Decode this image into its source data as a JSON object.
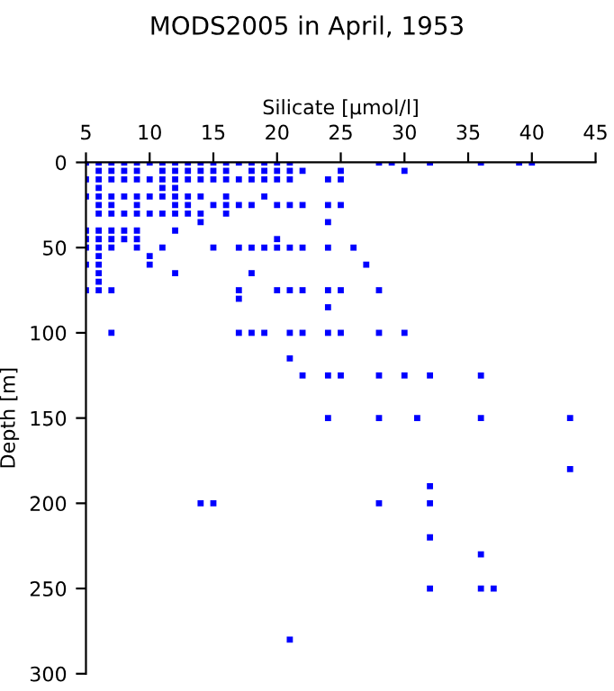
{
  "chart_data": {
    "type": "scatter",
    "title": "MODS2005 in April, 1953",
    "xlabel": "Silicate [µmol/l]",
    "ylabel": "Depth [m]",
    "marker": "square",
    "grid": false,
    "legend": false,
    "series": [
      {
        "color": "#0000ff",
        "x": [
          5,
          5,
          5,
          5,
          5,
          5,
          5,
          5,
          6,
          6,
          6,
          6,
          6,
          6,
          6,
          6,
          6,
          6,
          6,
          6,
          6,
          6,
          6,
          7,
          7,
          7,
          7,
          7,
          7,
          7,
          7,
          7,
          7,
          7,
          8,
          8,
          8,
          8,
          8,
          8,
          8,
          9,
          9,
          9,
          9,
          9,
          9,
          9,
          9,
          9,
          10,
          10,
          10,
          10,
          10,
          10,
          11,
          11,
          11,
          11,
          11,
          11,
          11,
          12,
          12,
          12,
          12,
          12,
          12,
          12,
          12,
          12,
          13,
          13,
          13,
          13,
          13,
          13,
          14,
          14,
          14,
          14,
          14,
          14,
          15,
          15,
          15,
          15,
          15,
          16,
          16,
          16,
          16,
          16,
          16,
          17,
          17,
          17,
          17,
          17,
          17,
          17,
          18,
          18,
          18,
          18,
          18,
          18,
          18,
          19,
          19,
          19,
          19,
          19,
          19,
          20,
          20,
          20,
          20,
          20,
          20,
          20,
          21,
          21,
          21,
          21,
          21,
          21,
          21,
          21,
          22,
          22,
          22,
          22,
          22,
          22,
          24,
          24,
          24,
          24,
          24,
          24,
          24,
          24,
          24,
          25,
          25,
          25,
          25,
          25,
          25,
          26,
          27,
          28,
          28,
          28,
          28,
          28,
          28,
          29,
          30,
          30,
          30,
          31,
          32,
          32,
          32,
          32,
          32,
          32,
          36,
          36,
          36,
          36,
          36,
          37,
          39,
          40,
          43,
          43,
          14,
          15,
          21
        ],
        "values": [
          0,
          10,
          20,
          40,
          45,
          50,
          60,
          75,
          0,
          5,
          10,
          15,
          20,
          25,
          30,
          40,
          45,
          50,
          55,
          60,
          65,
          70,
          75,
          0,
          5,
          10,
          20,
          25,
          30,
          40,
          45,
          50,
          75,
          100,
          0,
          5,
          10,
          20,
          30,
          40,
          45,
          0,
          5,
          10,
          20,
          25,
          30,
          40,
          45,
          50,
          0,
          10,
          20,
          30,
          55,
          60,
          0,
          5,
          10,
          15,
          20,
          30,
          50,
          0,
          5,
          10,
          15,
          20,
          25,
          30,
          40,
          65,
          0,
          5,
          10,
          20,
          25,
          30,
          0,
          5,
          10,
          20,
          30,
          35,
          0,
          5,
          10,
          25,
          50,
          0,
          5,
          10,
          20,
          25,
          30,
          0,
          10,
          25,
          50,
          75,
          80,
          100,
          0,
          5,
          10,
          25,
          50,
          65,
          100,
          0,
          5,
          10,
          20,
          50,
          100,
          0,
          5,
          10,
          25,
          45,
          50,
          75,
          0,
          5,
          10,
          25,
          50,
          75,
          100,
          115,
          5,
          25,
          50,
          75,
          100,
          125,
          10,
          25,
          35,
          50,
          75,
          85,
          100,
          125,
          150,
          5,
          10,
          25,
          75,
          100,
          125,
          50,
          60,
          0,
          75,
          100,
          125,
          150,
          200,
          0,
          5,
          100,
          125,
          150,
          0,
          125,
          190,
          200,
          220,
          250,
          0,
          125,
          150,
          230,
          250,
          250,
          0,
          0,
          150,
          180,
          200,
          200,
          280
        ]
      }
    ],
    "xlim": [
      5,
      45
    ],
    "xticks": [
      5,
      10,
      15,
      20,
      25,
      30,
      35,
      40,
      45
    ],
    "ylim": [
      300,
      0
    ],
    "yticks": [
      0,
      50,
      100,
      150,
      200,
      250,
      300
    ]
  }
}
